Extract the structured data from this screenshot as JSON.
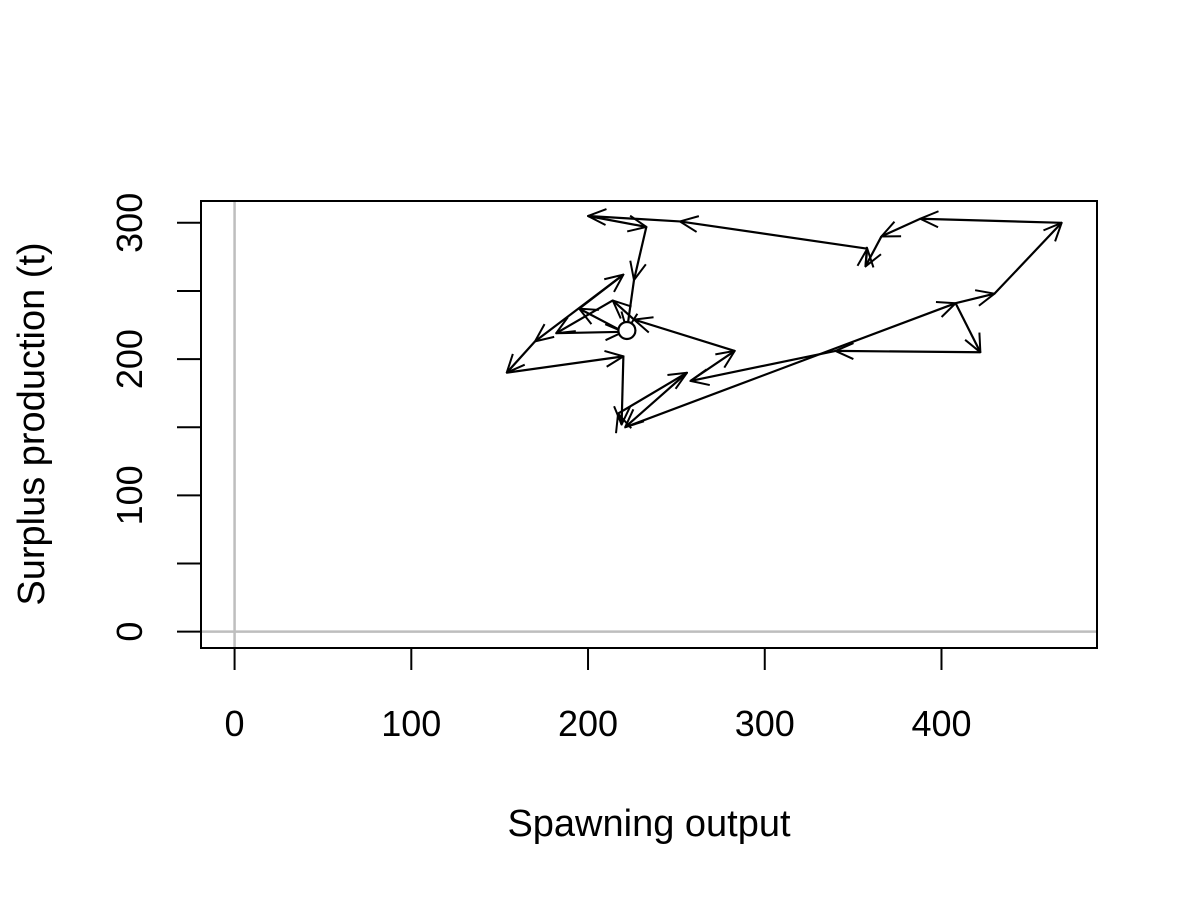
{
  "chart_data": {
    "type": "line",
    "title": "",
    "xlabel": "Spawning output",
    "ylabel": "Surplus production (t)",
    "xlim": [
      -19,
      488
    ],
    "ylim": [
      -12,
      316
    ],
    "x_ticks": [
      0,
      100,
      200,
      300,
      400
    ],
    "x_tick_labels": [
      "0",
      "100",
      "200",
      "300",
      "400"
    ],
    "y_ticks": [
      0,
      50,
      100,
      150,
      200,
      250,
      300
    ],
    "y_tick_labels": [
      "0",
      "",
      "100",
      "",
      "200",
      "",
      "300"
    ],
    "reference_lines": {
      "x": 0,
      "y": 0,
      "color": "#bebebe"
    },
    "arrows": true,
    "end_marker": "open-circle",
    "series": [
      {
        "points": [
          [
            408,
            241
          ],
          [
            422,
            205
          ],
          [
            340,
            206
          ],
          [
            258,
            184
          ],
          [
            283,
            206
          ],
          [
            226,
            229
          ],
          [
            214,
            243
          ],
          [
            182,
            219
          ],
          [
            220,
            220
          ],
          [
            195,
            237
          ],
          [
            220,
            262
          ],
          [
            170,
            213
          ],
          [
            154,
            190
          ],
          [
            220,
            202
          ],
          [
            219,
            152
          ],
          [
            217,
            160
          ],
          [
            256,
            190
          ],
          [
            221,
            150
          ],
          [
            408,
            241
          ],
          [
            430,
            248
          ],
          [
            468,
            300
          ],
          [
            388,
            303
          ],
          [
            366,
            290
          ],
          [
            357,
            268
          ],
          [
            358,
            281
          ],
          [
            252,
            301
          ],
          [
            200,
            305
          ],
          [
            233,
            297
          ],
          [
            226,
            258
          ],
          [
            222,
            221
          ]
        ]
      }
    ]
  }
}
